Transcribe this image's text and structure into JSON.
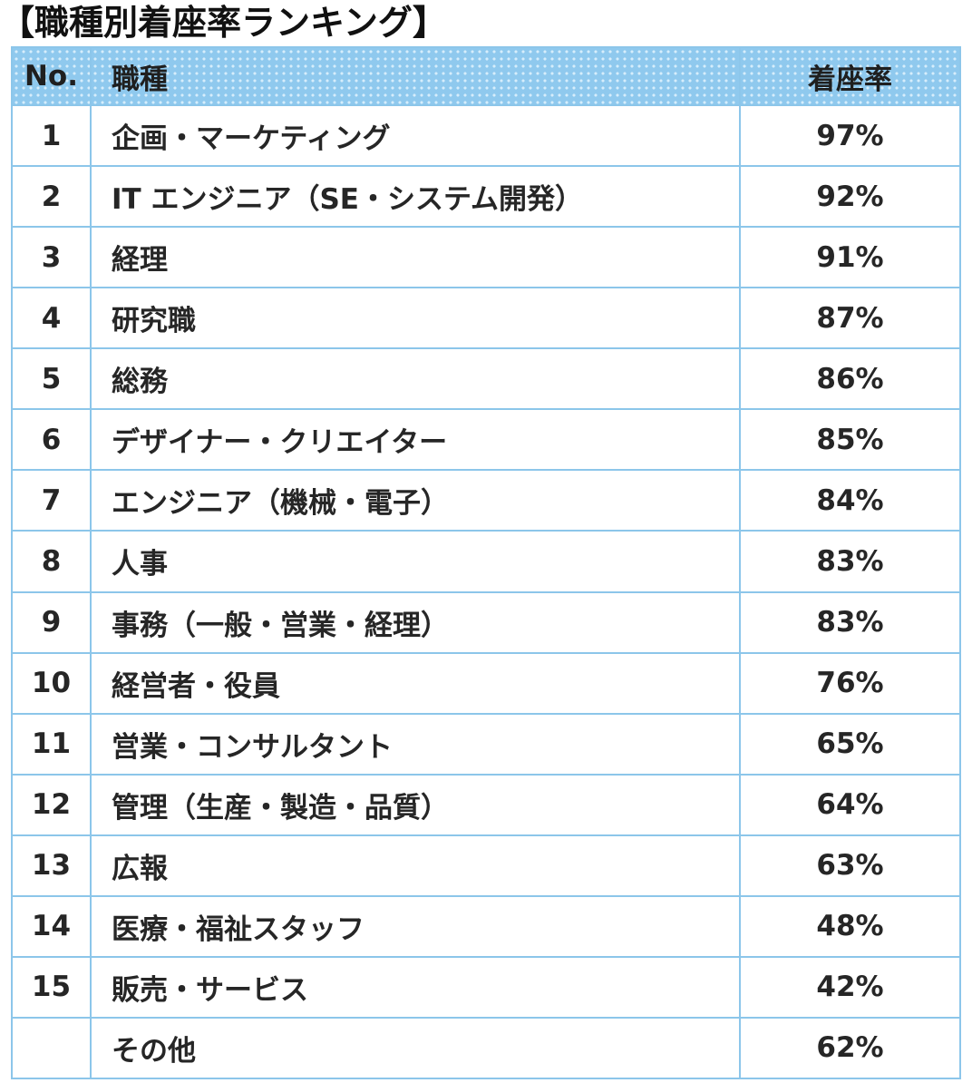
{
  "title": "【職種別着座率ランキング】",
  "table": {
    "headers": {
      "no": "No.",
      "job": "職種",
      "rate": "着座率"
    },
    "rows": [
      {
        "no": "1",
        "job": "企画・マーケティング",
        "rate": "97%"
      },
      {
        "no": "2",
        "job": "IT エンジニア（SE・システム開発）",
        "rate": "92%"
      },
      {
        "no": "3",
        "job": "経理",
        "rate": "91%"
      },
      {
        "no": "4",
        "job": "研究職",
        "rate": "87%"
      },
      {
        "no": "5",
        "job": "総務",
        "rate": "86%"
      },
      {
        "no": "6",
        "job": "デザイナー・クリエイター",
        "rate": "85%"
      },
      {
        "no": "7",
        "job": "エンジニア（機械・電子）",
        "rate": "84%"
      },
      {
        "no": "8",
        "job": "人事",
        "rate": "83%"
      },
      {
        "no": "9",
        "job": "事務（一般・営業・経理）",
        "rate": "83%"
      },
      {
        "no": "10",
        "job": "経営者・役員",
        "rate": "76%"
      },
      {
        "no": "11",
        "job": "営業・コンサルタント",
        "rate": "65%"
      },
      {
        "no": "12",
        "job": "管理（生産・製造・品質）",
        "rate": "64%"
      },
      {
        "no": "13",
        "job": "広報",
        "rate": "63%"
      },
      {
        "no": "14",
        "job": "医療・福祉スタッフ",
        "rate": "48%"
      },
      {
        "no": "15",
        "job": "販売・サービス",
        "rate": "42%"
      },
      {
        "no": "",
        "job": "その他",
        "rate": "62%"
      }
    ]
  },
  "chart_data": {
    "type": "table",
    "title": "【職種別着座率ランキング】",
    "columns": [
      "No.",
      "職種",
      "着座率"
    ],
    "rows": [
      [
        "1",
        "企画・マーケティング",
        "97%"
      ],
      [
        "2",
        "IT エンジニア（SE・システム開発）",
        "92%"
      ],
      [
        "3",
        "経理",
        "91%"
      ],
      [
        "4",
        "研究職",
        "87%"
      ],
      [
        "5",
        "総務",
        "86%"
      ],
      [
        "6",
        "デザイナー・クリエイター",
        "85%"
      ],
      [
        "7",
        "エンジニア（機械・電子）",
        "84%"
      ],
      [
        "8",
        "人事",
        "83%"
      ],
      [
        "9",
        "事務（一般・営業・経理）",
        "83%"
      ],
      [
        "10",
        "経営者・役員",
        "76%"
      ],
      [
        "11",
        "営業・コンサルタント",
        "65%"
      ],
      [
        "12",
        "管理（生産・製造・品質）",
        "64%"
      ],
      [
        "13",
        "広報",
        "63%"
      ],
      [
        "14",
        "医療・福祉スタッフ",
        "48%"
      ],
      [
        "15",
        "販売・サービス",
        "42%"
      ],
      [
        "",
        "その他",
        "62%"
      ]
    ]
  },
  "colors": {
    "header_background": "#8fc9ee",
    "header_dots": "#d6edfb",
    "border": "#8cc6ea",
    "text": "#262626"
  }
}
